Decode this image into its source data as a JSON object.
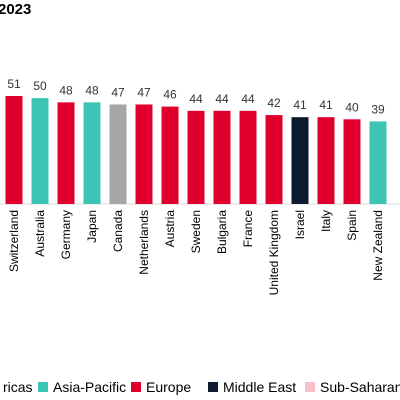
{
  "title": "2023",
  "colors": {
    "Americas": "#a6a6a6",
    "Asia-Pacific": "#3cc5b4",
    "Europe": "#e1002d",
    "Middle East": "#0c1b2e",
    "Sub-Saharan": "#f5c0c8"
  },
  "chart_data": {
    "type": "bar",
    "title": "2023",
    "categories": [
      "Switzerland",
      "Australia",
      "Germany",
      "Japan",
      "Canada",
      "Netherlands",
      "Austria",
      "Sweden",
      "Bulgaria",
      "France",
      "United Kingdom",
      "Israel",
      "Italy",
      "Spain",
      "New Zealand"
    ],
    "values": [
      51,
      50,
      48,
      48,
      47,
      47,
      46,
      44,
      44,
      44,
      42,
      41,
      41,
      40,
      39
    ],
    "groups": [
      "Europe",
      "Asia-Pacific",
      "Europe",
      "Asia-Pacific",
      "Americas",
      "Europe",
      "Europe",
      "Europe",
      "Europe",
      "Europe",
      "Europe",
      "Middle East",
      "Europe",
      "Europe",
      "Asia-Pacific"
    ],
    "legend": {
      "position": "bottom",
      "items": [
        {
          "label": "ricas",
          "group": "Americas"
        },
        {
          "label": "Asia-Pacific",
          "group": "Asia-Pacific"
        },
        {
          "label": "Europe",
          "group": "Europe"
        },
        {
          "label": "Middle East",
          "group": "Middle East"
        },
        {
          "label": "Sub-Saharan",
          "group": "Sub-Saharan"
        }
      ]
    },
    "grid": false
  }
}
